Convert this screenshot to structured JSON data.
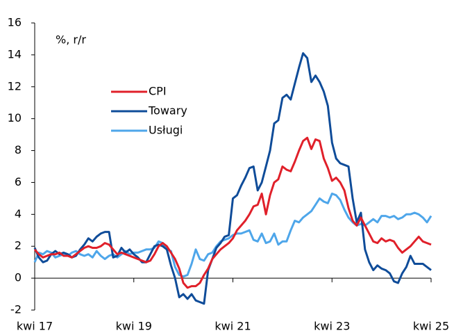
{
  "chart_data": {
    "type": "line",
    "annotation": "%, r/r",
    "categories": [
      "kwi 17",
      null,
      null,
      null,
      null,
      null,
      null,
      null,
      null,
      null,
      null,
      null,
      null,
      null,
      null,
      null,
      null,
      null,
      null,
      null,
      null,
      null,
      null,
      null,
      "kwi 19",
      null,
      null,
      null,
      null,
      null,
      null,
      null,
      null,
      null,
      null,
      null,
      null,
      null,
      null,
      null,
      null,
      null,
      null,
      null,
      null,
      null,
      null,
      null,
      "kwi 21",
      null,
      null,
      null,
      null,
      null,
      null,
      null,
      null,
      null,
      null,
      null,
      null,
      null,
      null,
      null,
      null,
      null,
      null,
      null,
      null,
      null,
      null,
      null,
      "kwi 23",
      null,
      null,
      null,
      null,
      null,
      null,
      null,
      null,
      null,
      null,
      null,
      null,
      null,
      null,
      null,
      null,
      null,
      null,
      null,
      null,
      null,
      null,
      null,
      "kwi 25"
    ],
    "series": [
      {
        "name": "CPI",
        "color": "#e0202a",
        "values": [
          1.8,
          1.5,
          1.3,
          1.4,
          1.5,
          1.5,
          1.6,
          1.4,
          1.4,
          1.3,
          1.5,
          1.7,
          1.9,
          2.0,
          1.9,
          1.9,
          2.0,
          2.2,
          2.1,
          1.8,
          1.5,
          1.6,
          1.5,
          1.4,
          1.3,
          1.2,
          1.1,
          1.0,
          1.1,
          1.5,
          2.0,
          2.2,
          2.0,
          1.6,
          1.2,
          0.6,
          -0.3,
          -0.6,
          -0.5,
          -0.5,
          -0.3,
          0.2,
          0.6,
          1.2,
          1.5,
          1.8,
          2.0,
          2.2,
          2.5,
          3.0,
          3.3,
          3.6,
          4.0,
          4.5,
          4.6,
          5.3,
          4.0,
          5.2,
          6.0,
          6.2,
          7.0,
          6.8,
          6.7,
          7.3,
          8.0,
          8.6,
          8.8,
          8.1,
          8.7,
          8.6,
          7.5,
          6.9,
          6.1,
          6.3,
          6.0,
          5.5,
          4.4,
          3.6,
          3.3,
          3.8,
          3.3,
          2.8,
          2.3,
          2.2,
          2.5,
          2.3,
          2.4,
          2.3,
          1.9,
          1.6,
          1.8,
          2.0,
          2.3,
          2.6,
          2.3,
          2.2,
          2.1
        ]
      },
      {
        "name": "Towary",
        "color": "#0f4c99",
        "values": [
          1.9,
          1.3,
          1.0,
          1.1,
          1.5,
          1.7,
          1.5,
          1.6,
          1.5,
          1.3,
          1.4,
          1.8,
          2.1,
          2.5,
          2.3,
          2.6,
          2.8,
          2.9,
          2.9,
          1.3,
          1.4,
          1.9,
          1.6,
          1.8,
          1.5,
          1.3,
          1.0,
          1.0,
          1.5,
          2.0,
          2.1,
          2.0,
          1.8,
          0.8,
          0.0,
          -1.2,
          -1.0,
          -1.3,
          -1.0,
          -1.4,
          -1.5,
          -1.6,
          0.5,
          1.2,
          1.9,
          2.2,
          2.6,
          2.7,
          5.0,
          5.2,
          5.8,
          6.3,
          6.9,
          7.0,
          5.5,
          6.0,
          7.0,
          8.0,
          9.7,
          9.9,
          11.3,
          11.5,
          11.2,
          12.2,
          13.2,
          14.1,
          13.8,
          12.3,
          12.7,
          12.3,
          11.7,
          10.8,
          8.5,
          7.5,
          7.2,
          7.1,
          7.0,
          5.0,
          3.5,
          4.1,
          1.8,
          1.0,
          0.5,
          0.8,
          0.6,
          0.5,
          0.3,
          -0.2,
          -0.3,
          0.3,
          0.7,
          1.4,
          0.9,
          0.9,
          0.9,
          0.7,
          0.5
        ]
      },
      {
        "name": "Usługi",
        "color": "#4ea6ea",
        "values": [
          1.0,
          1.6,
          1.5,
          1.7,
          1.6,
          1.3,
          1.4,
          1.5,
          1.4,
          1.6,
          1.7,
          1.5,
          1.4,
          1.5,
          1.3,
          1.7,
          1.4,
          1.2,
          1.4,
          1.5,
          1.3,
          1.5,
          1.7,
          1.5,
          1.6,
          1.6,
          1.7,
          1.8,
          1.8,
          1.9,
          2.3,
          2.2,
          1.8,
          1.7,
          0.7,
          0.2,
          0.1,
          0.2,
          0.9,
          1.8,
          1.2,
          1.1,
          1.5,
          1.6,
          2.0,
          2.3,
          2.4,
          2.5,
          2.7,
          2.8,
          2.8,
          2.9,
          3.0,
          2.4,
          2.3,
          2.8,
          2.2,
          2.3,
          2.8,
          2.1,
          2.3,
          2.3,
          3.0,
          3.6,
          3.5,
          3.8,
          4.0,
          4.2,
          4.6,
          5.0,
          4.8,
          4.7,
          5.3,
          5.2,
          4.9,
          4.3,
          3.8,
          3.5,
          3.3,
          3.4,
          3.3,
          3.5,
          3.7,
          3.5,
          3.9,
          3.9,
          3.8,
          3.9,
          3.7,
          3.8,
          4.0,
          4.0,
          4.1,
          4.0,
          3.8,
          3.5,
          3.9
        ]
      }
    ],
    "ylim": [
      -2,
      16
    ],
    "yticks": [
      -2,
      0,
      2,
      4,
      6,
      8,
      10,
      12,
      14,
      16
    ]
  }
}
